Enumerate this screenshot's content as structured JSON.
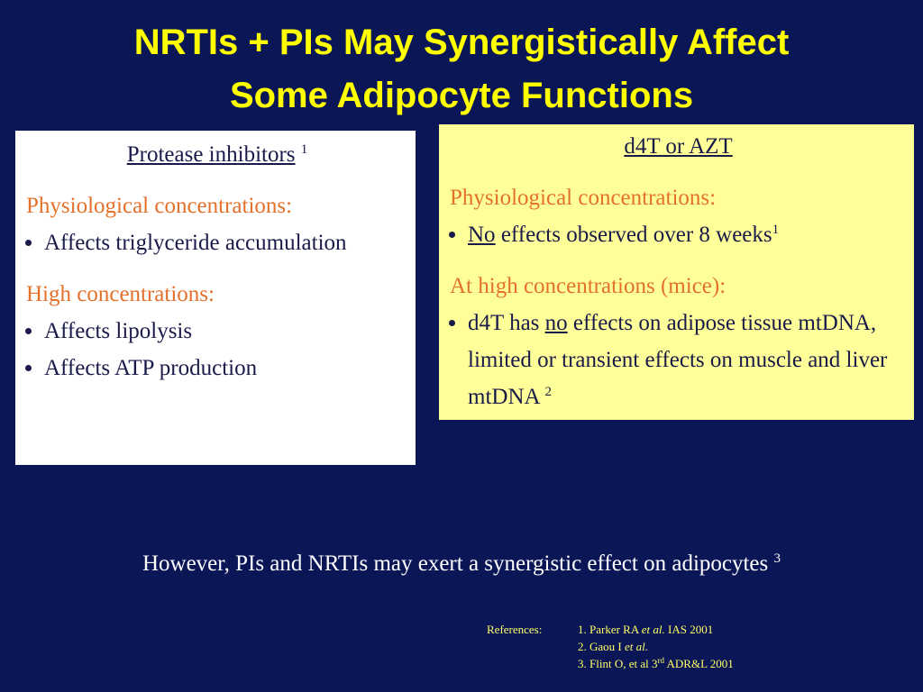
{
  "title": [
    "NRTIs + PIs May Synergistically Affect",
    "Some Adipocyte Functions"
  ],
  "left_box": {
    "heading": "Protease inhibitors",
    "heading_ref": "1",
    "sections": [
      {
        "heading": "Physiological concentrations:",
        "bullets": [
          "Affects triglyceride accumulation"
        ]
      },
      {
        "heading": "High concentrations:",
        "bullets": [
          "Affects lipolysis",
          "Affects ATP production"
        ]
      }
    ]
  },
  "right_box": {
    "heading": "d4T or AZT",
    "sections": [
      {
        "heading": "Physiological concentrations:",
        "bullets": [
          {
            "emphasis": "No",
            "text": "effects observed over 8 weeks",
            "ref": "1"
          }
        ]
      },
      {
        "heading": "At high concentrations (mice):",
        "bullets": [
          {
            "lead": "d4T has",
            "emphasis": "no",
            "text": "effects on adipose tissue mtDNA, limited or transient effects on muscle and liver mtDNA",
            "ref": "2"
          }
        ]
      }
    ]
  },
  "conclusion": {
    "text": "However, PIs and NRTIs may exert a synergistic effect on adipocytes",
    "ref": "3"
  },
  "references": {
    "label": "References:",
    "items": [
      {
        "author": "1. Parker RA",
        "etal": "et al.",
        "rest": "IAS 2001"
      },
      {
        "author": "2. Gaou I",
        "etal": "et al."
      },
      {
        "author": "3. Flint O, et al 3",
        "sup": "rd",
        "rest": "ADR&L 2001"
      }
    ]
  }
}
